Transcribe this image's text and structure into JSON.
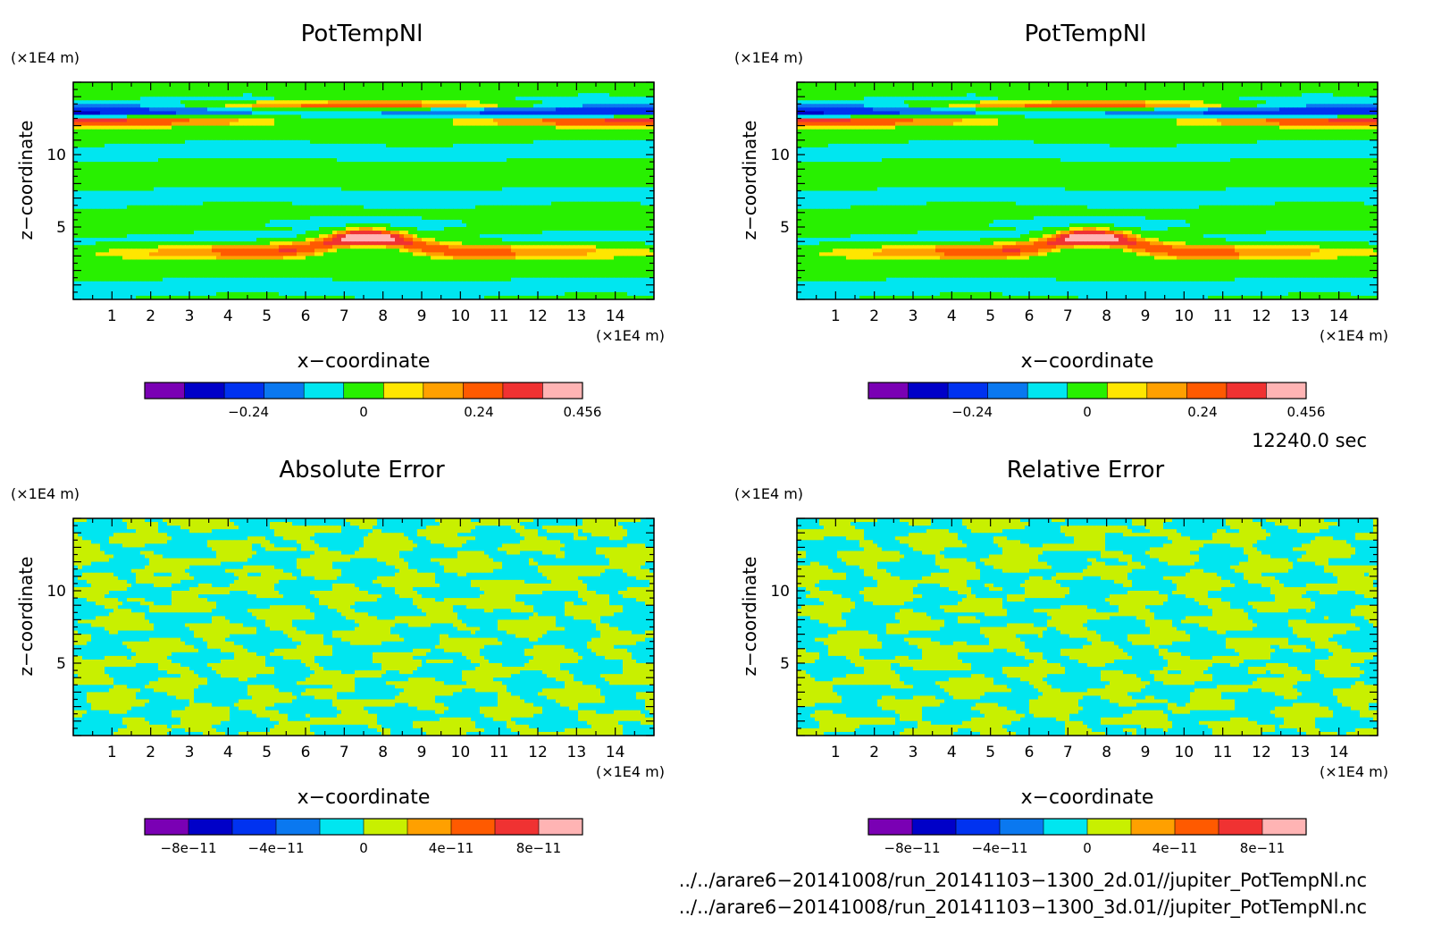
{
  "panels": [
    {
      "title": "PotTempNl",
      "x_axis_label": "x−coordinate",
      "y_axis_label": "z−coordinate",
      "x_unit": "(×1E4 m)",
      "y_unit": "(×1E4 m)",
      "x_ticks": [
        "1",
        "2",
        "3",
        "4",
        "5",
        "6",
        "7",
        "8",
        "9",
        "10",
        "11",
        "12",
        "13",
        "14"
      ],
      "y_ticks": [
        "5",
        "10"
      ],
      "colorbar_labels": [
        "−0.24",
        "0",
        "0.24",
        "0.456"
      ],
      "field": "potential-temperature"
    },
    {
      "title": "PotTempNl",
      "x_axis_label": "x−coordinate",
      "y_axis_label": "z−coordinate",
      "x_unit": "(×1E4 m)",
      "y_unit": "(×1E4 m)",
      "x_ticks": [
        "1",
        "2",
        "3",
        "4",
        "5",
        "6",
        "7",
        "8",
        "9",
        "10",
        "11",
        "12",
        "13",
        "14"
      ],
      "y_ticks": [
        "5",
        "10"
      ],
      "colorbar_labels": [
        "−0.24",
        "0",
        "0.24",
        "0.456"
      ],
      "field": "potential-temperature"
    },
    {
      "title": "Absolute Error",
      "x_axis_label": "x−coordinate",
      "y_axis_label": "z−coordinate",
      "x_unit": "(×1E4 m)",
      "y_unit": "(×1E4 m)",
      "x_ticks": [
        "1",
        "2",
        "3",
        "4",
        "5",
        "6",
        "7",
        "8",
        "9",
        "10",
        "11",
        "12",
        "13",
        "14"
      ],
      "y_ticks": [
        "5",
        "10"
      ],
      "colorbar_labels": [
        "−8e−11",
        "−4e−11",
        "0",
        "4e−11",
        "8e−11"
      ],
      "field": "noise"
    },
    {
      "title": "Relative Error",
      "x_axis_label": "x−coordinate",
      "y_axis_label": "z−coordinate",
      "x_unit": "(×1E4 m)",
      "y_unit": "(×1E4 m)",
      "x_ticks": [
        "1",
        "2",
        "3",
        "4",
        "5",
        "6",
        "7",
        "8",
        "9",
        "10",
        "11",
        "12",
        "13",
        "14"
      ],
      "y_ticks": [
        "5",
        "10"
      ],
      "colorbar_labels": [
        "−8e−11",
        "−4e−11",
        "0",
        "4e−11",
        "8e−11"
      ],
      "field": "noise"
    }
  ],
  "time_label": "12240.0 sec",
  "file_paths": [
    "../../arare6−20141008/run_20141103−1300_2d.01//jupiter_PotTempNl.nc",
    "../../arare6−20141008/run_20141103−1300_3d.01//jupiter_PotTempNl.nc"
  ],
  "colors": {
    "palette": [
      "#7a00b4",
      "#0000c8",
      "#0032f0",
      "#0a78f0",
      "#00e6f0",
      "#28f000",
      "#ffe600",
      "#ffa000",
      "#ff5a00",
      "#f03232",
      "#ffb4b4"
    ],
    "error_palette": [
      "#7a00b4",
      "#0000c8",
      "#0032f0",
      "#0a78f0",
      "#00e6f0",
      "#c8f000",
      "#ffa000",
      "#ff5a00",
      "#f03232",
      "#ffb4b4"
    ]
  },
  "chart_data": [
    {
      "type": "heatmap",
      "title": "PotTempNl",
      "xlabel": "x−coordinate",
      "ylabel": "z−coordinate",
      "xlim": [
        0,
        15
      ],
      "ylim": [
        0,
        15
      ],
      "colorbar_ticks": [
        -0.24,
        0,
        0.24,
        0.456
      ],
      "colorbar_range": [
        -0.456,
        0.456
      ]
    },
    {
      "type": "heatmap",
      "title": "PotTempNl",
      "xlabel": "x−coordinate",
      "ylabel": "z−coordinate",
      "xlim": [
        0,
        15
      ],
      "ylim": [
        0,
        15
      ],
      "colorbar_ticks": [
        -0.24,
        0,
        0.24,
        0.456
      ],
      "colorbar_range": [
        -0.456,
        0.456
      ]
    },
    {
      "type": "heatmap",
      "title": "Absolute Error",
      "xlabel": "x−coordinate",
      "ylabel": "z−coordinate",
      "xlim": [
        0,
        15
      ],
      "ylim": [
        0,
        15
      ],
      "colorbar_ticks": [
        -8e-11,
        -4e-11,
        0,
        4e-11,
        8e-11
      ],
      "colorbar_range": [
        -1e-10,
        1e-10
      ]
    },
    {
      "type": "heatmap",
      "title": "Relative Error",
      "xlabel": "x−coordinate",
      "ylabel": "z−coordinate",
      "xlim": [
        0,
        15
      ],
      "ylim": [
        0,
        15
      ],
      "colorbar_ticks": [
        -8e-11,
        -4e-11,
        0,
        4e-11,
        8e-11
      ],
      "colorbar_range": [
        -1e-10,
        1e-10
      ]
    }
  ]
}
